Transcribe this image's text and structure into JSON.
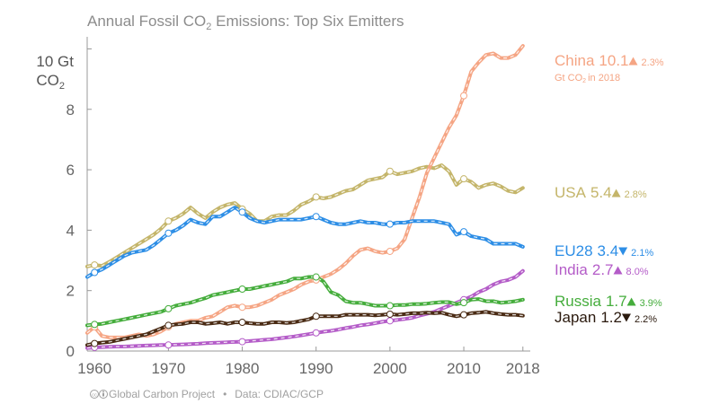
{
  "chart_data": {
    "type": "line",
    "title": "Annual Fossil CO",
    "title_sub": "2",
    "title_rest": " Emissions: Top Six Emitters",
    "ylabel_top": "10 Gt",
    "ylabel_unit": "CO",
    "ylabel_sub": "2",
    "xlim": [
      1959,
      2019
    ],
    "ylim": [
      0,
      10.4
    ],
    "x_ticks": [
      1960,
      1970,
      1980,
      1990,
      2000,
      2010,
      2018
    ],
    "y_ticks": [
      {
        "value": 0,
        "label": "0"
      },
      {
        "value": 2,
        "label": "2"
      },
      {
        "value": 4,
        "label": "4"
      },
      {
        "value": 6,
        "label": "6"
      },
      {
        "value": 8,
        "label": "8"
      }
    ],
    "x": [
      1959,
      1960,
      1961,
      1962,
      1963,
      1964,
      1965,
      1966,
      1967,
      1968,
      1969,
      1970,
      1971,
      1972,
      1973,
      1974,
      1975,
      1976,
      1977,
      1978,
      1979,
      1980,
      1981,
      1982,
      1983,
      1984,
      1985,
      1986,
      1987,
      1988,
      1989,
      1990,
      1991,
      1992,
      1993,
      1994,
      1995,
      1996,
      1997,
      1998,
      1999,
      2000,
      2001,
      2002,
      2003,
      2004,
      2005,
      2006,
      2007,
      2008,
      2009,
      2010,
      2011,
      2012,
      2013,
      2014,
      2015,
      2016,
      2017,
      2018
    ],
    "markers": [
      1960,
      1970,
      1980,
      1990,
      2000,
      2010
    ],
    "series": [
      {
        "name": "USA",
        "color": "#c4b56a",
        "label": "USA",
        "value_label": "5.4",
        "direction": "up",
        "pct_change": "2.8%",
        "values": [
          2.8,
          2.85,
          2.82,
          2.95,
          3.1,
          3.25,
          3.4,
          3.55,
          3.7,
          3.85,
          4.05,
          4.3,
          4.4,
          4.55,
          4.75,
          4.55,
          4.4,
          4.6,
          4.75,
          4.85,
          4.9,
          4.7,
          4.55,
          4.3,
          4.3,
          4.45,
          4.5,
          4.5,
          4.65,
          4.85,
          4.95,
          5.1,
          5.05,
          5.1,
          5.2,
          5.3,
          5.35,
          5.5,
          5.65,
          5.7,
          5.75,
          5.95,
          5.85,
          5.9,
          5.95,
          6.05,
          6.1,
          6.05,
          6.15,
          5.95,
          5.5,
          5.7,
          5.6,
          5.4,
          5.5,
          5.55,
          5.45,
          5.3,
          5.25,
          5.4
        ]
      },
      {
        "name": "China",
        "color": "#f5a584",
        "label": "China",
        "value_label": "10.1",
        "direction": "up",
        "pct_change": "2.3%",
        "note": "Gt CO",
        "values": [
          0.6,
          0.8,
          0.5,
          0.45,
          0.45,
          0.45,
          0.5,
          0.55,
          0.5,
          0.55,
          0.65,
          0.8,
          0.9,
          0.95,
          1.0,
          1.0,
          1.1,
          1.15,
          1.3,
          1.45,
          1.5,
          1.45,
          1.45,
          1.5,
          1.6,
          1.7,
          1.85,
          1.95,
          2.05,
          2.2,
          2.3,
          2.35,
          2.45,
          2.55,
          2.7,
          2.9,
          3.15,
          3.35,
          3.4,
          3.3,
          3.25,
          3.3,
          3.4,
          3.7,
          4.4,
          5.1,
          5.9,
          6.4,
          6.9,
          7.4,
          7.8,
          8.45,
          9.25,
          9.55,
          9.8,
          9.85,
          9.7,
          9.7,
          9.8,
          10.1
        ]
      },
      {
        "name": "EU28",
        "color": "#2d8ee6",
        "label": "EU28",
        "value_label": "3.4",
        "direction": "down",
        "pct_change": "2.1%",
        "values": [
          2.45,
          2.6,
          2.7,
          2.85,
          3.0,
          3.15,
          3.25,
          3.3,
          3.35,
          3.5,
          3.7,
          3.9,
          4.0,
          4.15,
          4.35,
          4.25,
          4.2,
          4.45,
          4.45,
          4.6,
          4.75,
          4.6,
          4.4,
          4.3,
          4.25,
          4.3,
          4.35,
          4.35,
          4.35,
          4.35,
          4.4,
          4.45,
          4.35,
          4.25,
          4.2,
          4.2,
          4.25,
          4.3,
          4.25,
          4.25,
          4.2,
          4.2,
          4.25,
          4.25,
          4.3,
          4.3,
          4.3,
          4.3,
          4.25,
          4.2,
          3.85,
          3.95,
          3.8,
          3.75,
          3.7,
          3.55,
          3.55,
          3.55,
          3.55,
          3.45
        ]
      },
      {
        "name": "India",
        "color": "#b45cc8",
        "label": "India",
        "value_label": "2.7",
        "direction": "up",
        "pct_change": "8.0%",
        "values": [
          0.1,
          0.12,
          0.13,
          0.14,
          0.15,
          0.15,
          0.16,
          0.17,
          0.18,
          0.19,
          0.2,
          0.2,
          0.21,
          0.22,
          0.23,
          0.24,
          0.26,
          0.27,
          0.28,
          0.29,
          0.3,
          0.31,
          0.33,
          0.35,
          0.37,
          0.39,
          0.42,
          0.45,
          0.48,
          0.52,
          0.56,
          0.6,
          0.64,
          0.67,
          0.71,
          0.76,
          0.8,
          0.85,
          0.88,
          0.92,
          0.97,
          1.0,
          1.03,
          1.06,
          1.1,
          1.17,
          1.23,
          1.3,
          1.4,
          1.5,
          1.6,
          1.7,
          1.8,
          1.95,
          2.05,
          2.2,
          2.3,
          2.35,
          2.45,
          2.65
        ]
      },
      {
        "name": "Russia",
        "color": "#45ad3c",
        "label": "Russia",
        "value_label": "1.7",
        "direction": "up",
        "pct_change": "3.9%",
        "values": [
          0.85,
          0.88,
          0.9,
          0.95,
          1.0,
          1.05,
          1.1,
          1.15,
          1.2,
          1.25,
          1.3,
          1.4,
          1.5,
          1.55,
          1.6,
          1.68,
          1.75,
          1.85,
          1.9,
          1.95,
          2.0,
          2.05,
          2.05,
          2.1,
          2.15,
          2.2,
          2.25,
          2.3,
          2.4,
          2.4,
          2.45,
          2.45,
          2.3,
          1.95,
          1.85,
          1.65,
          1.6,
          1.6,
          1.55,
          1.5,
          1.5,
          1.5,
          1.52,
          1.52,
          1.55,
          1.55,
          1.57,
          1.6,
          1.62,
          1.62,
          1.55,
          1.6,
          1.7,
          1.72,
          1.65,
          1.65,
          1.6,
          1.62,
          1.65,
          1.7
        ]
      },
      {
        "name": "Japan",
        "color": "#4a2b14",
        "label": "Japan",
        "value_label": "1.2",
        "direction": "down",
        "pct_change": "2.2%",
        "values": [
          0.2,
          0.25,
          0.28,
          0.3,
          0.35,
          0.4,
          0.45,
          0.5,
          0.55,
          0.65,
          0.75,
          0.85,
          0.88,
          0.9,
          0.95,
          0.95,
          0.9,
          0.92,
          0.95,
          0.9,
          0.95,
          0.95,
          0.92,
          0.9,
          0.9,
          0.95,
          0.95,
          0.93,
          0.95,
          1.0,
          1.05,
          1.15,
          1.15,
          1.15,
          1.15,
          1.2,
          1.2,
          1.2,
          1.2,
          1.18,
          1.2,
          1.22,
          1.2,
          1.22,
          1.25,
          1.25,
          1.27,
          1.25,
          1.27,
          1.2,
          1.15,
          1.2,
          1.25,
          1.27,
          1.3,
          1.25,
          1.22,
          1.2,
          1.2,
          1.17
        ]
      }
    ]
  },
  "credits": {
    "source_org": "Global Carbon Project",
    "separator": "•",
    "data_source": "Data: CDIAC/GCP"
  }
}
